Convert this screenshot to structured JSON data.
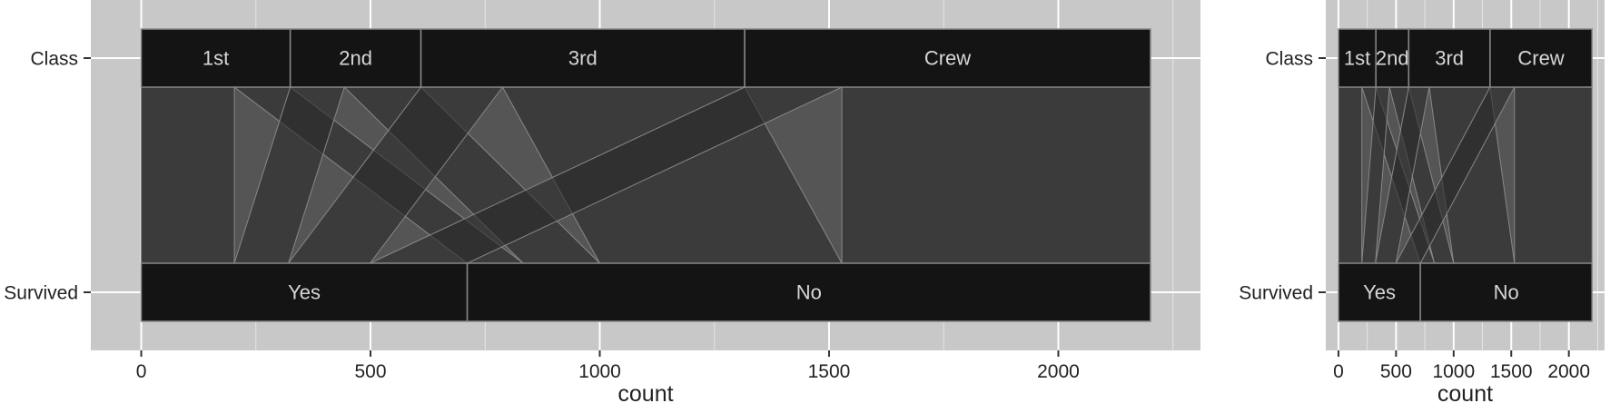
{
  "colors": {
    "panel": "#c8c8c8",
    "grid": "#ffffff",
    "box": "#141414",
    "band": "#2a2a2a",
    "box_stroke": "#888888",
    "axis_text": "#222222",
    "label_text": "#d6d6d6"
  },
  "chart_data": [
    {
      "type": "parallel-sets",
      "xlabel": "count",
      "xlim": [
        -110,
        2310
      ],
      "x_ticks": [
        0,
        500,
        1000,
        1500,
        2000
      ],
      "x_tick_labels": [
        "0",
        "500",
        "1000",
        "1500",
        "2000"
      ],
      "grid": true,
      "axes": [
        {
          "name": "Class",
          "categories": [
            {
              "label": "1st",
              "count": 325
            },
            {
              "label": "2nd",
              "count": 285
            },
            {
              "label": "3rd",
              "count": 706
            },
            {
              "label": "Crew",
              "count": 885
            }
          ]
        },
        {
          "name": "Survived",
          "categories": [
            {
              "label": "Yes",
              "count": 711
            },
            {
              "label": "No",
              "count": 1490
            }
          ]
        }
      ],
      "flows": [
        {
          "from": "1st",
          "to": "Yes",
          "count": 203
        },
        {
          "from": "1st",
          "to": "No",
          "count": 122
        },
        {
          "from": "2nd",
          "to": "Yes",
          "count": 118
        },
        {
          "from": "2nd",
          "to": "No",
          "count": 167
        },
        {
          "from": "3rd",
          "to": "Yes",
          "count": 178
        },
        {
          "from": "3rd",
          "to": "No",
          "count": 528
        },
        {
          "from": "Crew",
          "to": "Yes",
          "count": 212
        },
        {
          "from": "Crew",
          "to": "No",
          "count": 673
        }
      ]
    },
    {
      "type": "parallel-sets",
      "xlabel": "count",
      "xlim": [
        -110,
        2310
      ],
      "x_ticks": [
        0,
        500,
        1000,
        1500,
        2000
      ],
      "x_tick_labels": [
        "0",
        "500",
        "1000",
        "1500",
        "2000"
      ],
      "grid": true,
      "axes": [
        {
          "name": "Class",
          "categories": [
            {
              "label": "1st",
              "count": 325
            },
            {
              "label": "2nd",
              "count": 285
            },
            {
              "label": "3rd",
              "count": 706
            },
            {
              "label": "Crew",
              "count": 885
            }
          ]
        },
        {
          "name": "Survived",
          "categories": [
            {
              "label": "Yes",
              "count": 711
            },
            {
              "label": "No",
              "count": 1490
            }
          ]
        }
      ],
      "flows": [
        {
          "from": "1st",
          "to": "Yes",
          "count": 203
        },
        {
          "from": "1st",
          "to": "No",
          "count": 122
        },
        {
          "from": "2nd",
          "to": "Yes",
          "count": 118
        },
        {
          "from": "2nd",
          "to": "No",
          "count": 167
        },
        {
          "from": "3rd",
          "to": "Yes",
          "count": 178
        },
        {
          "from": "3rd",
          "to": "No",
          "count": 528
        },
        {
          "from": "Crew",
          "to": "Yes",
          "count": 212
        },
        {
          "from": "Crew",
          "to": "No",
          "count": 673
        }
      ]
    }
  ]
}
